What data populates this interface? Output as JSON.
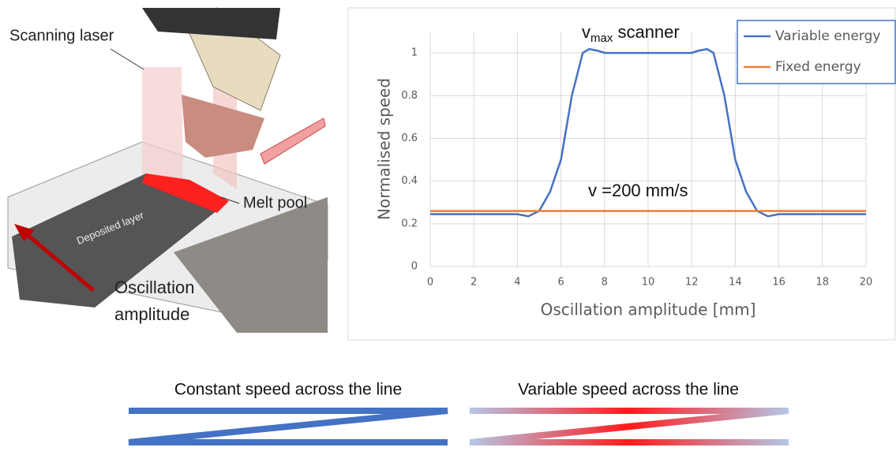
{
  "chart_data": {
    "type": "line",
    "annotations": [
      {
        "text": "v",
        "subscript": "max",
        "suffix": " scanner"
      },
      {
        "text": "v =200 mm/s"
      }
    ],
    "xlabel": "Oscillation amplitude [mm]",
    "ylabel": "Normalised speed",
    "xlim": [
      0,
      20
    ],
    "xticks": [
      0,
      2,
      4,
      6,
      8,
      10,
      12,
      14,
      16,
      18,
      20
    ],
    "ylim": [
      0,
      1.1
    ],
    "yticks": [
      0,
      0.2,
      0.4,
      0.6,
      0.8,
      1
    ],
    "grid": true,
    "legend": "upper right",
    "series": [
      {
        "name": "Variable energy",
        "color": "#4472c4",
        "x": [
          0,
          4,
          4.5,
          5,
          5.5,
          6,
          6.5,
          7,
          7.3,
          7.7,
          8,
          10,
          12,
          12.3,
          12.7,
          13,
          13.5,
          14,
          14.5,
          15,
          15.5,
          16,
          20
        ],
        "values": [
          0.245,
          0.245,
          0.235,
          0.26,
          0.35,
          0.5,
          0.8,
          1.0,
          1.018,
          1.01,
          1.0,
          1.0,
          1.0,
          1.01,
          1.018,
          1.0,
          0.8,
          0.5,
          0.35,
          0.26,
          0.235,
          0.245,
          0.245
        ]
      },
      {
        "name": "Fixed energy",
        "color": "#ed7d31",
        "x": [
          0,
          20
        ],
        "values": [
          0.26,
          0.26
        ]
      }
    ]
  },
  "illustration": {
    "labels": [
      "Scanning laser",
      "Melt pool",
      "Deposited layer",
      "Oscillation",
      "amplitude"
    ]
  },
  "bottom": {
    "left_title": "Constant speed across the line",
    "right_title": "Variable speed across the line"
  }
}
